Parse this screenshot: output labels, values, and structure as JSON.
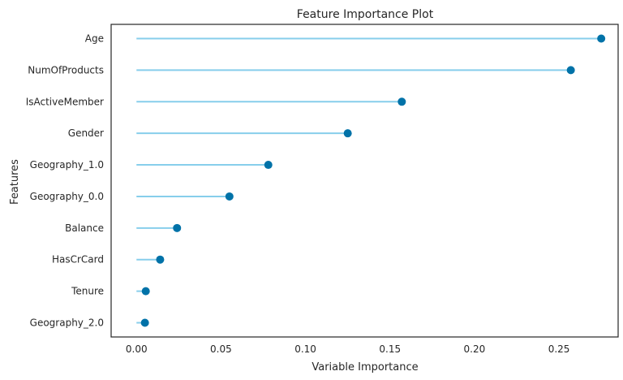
{
  "chart_data": {
    "type": "lollipop",
    "title": "Feature Importance Plot",
    "xlabel": "Variable Importance",
    "ylabel": "Features",
    "xlim": [
      -0.015,
      0.285
    ],
    "xticks": [
      0.0,
      0.05,
      0.1,
      0.15,
      0.2,
      0.25
    ],
    "xtick_labels": [
      "0.00",
      "0.05",
      "0.10",
      "0.15",
      "0.20",
      "0.25"
    ],
    "grid": false,
    "colors": {
      "stem": "#87ceeb",
      "marker": "#0072a8",
      "frame": "#262626"
    },
    "categories": [
      "Age",
      "NumOfProducts",
      "IsActiveMember",
      "Gender",
      "Geography_1.0",
      "Geography_0.0",
      "Balance",
      "HasCrCard",
      "Tenure",
      "Geography_2.0"
    ],
    "values": [
      0.275,
      0.257,
      0.157,
      0.125,
      0.078,
      0.055,
      0.024,
      0.014,
      0.0055,
      0.005
    ]
  }
}
